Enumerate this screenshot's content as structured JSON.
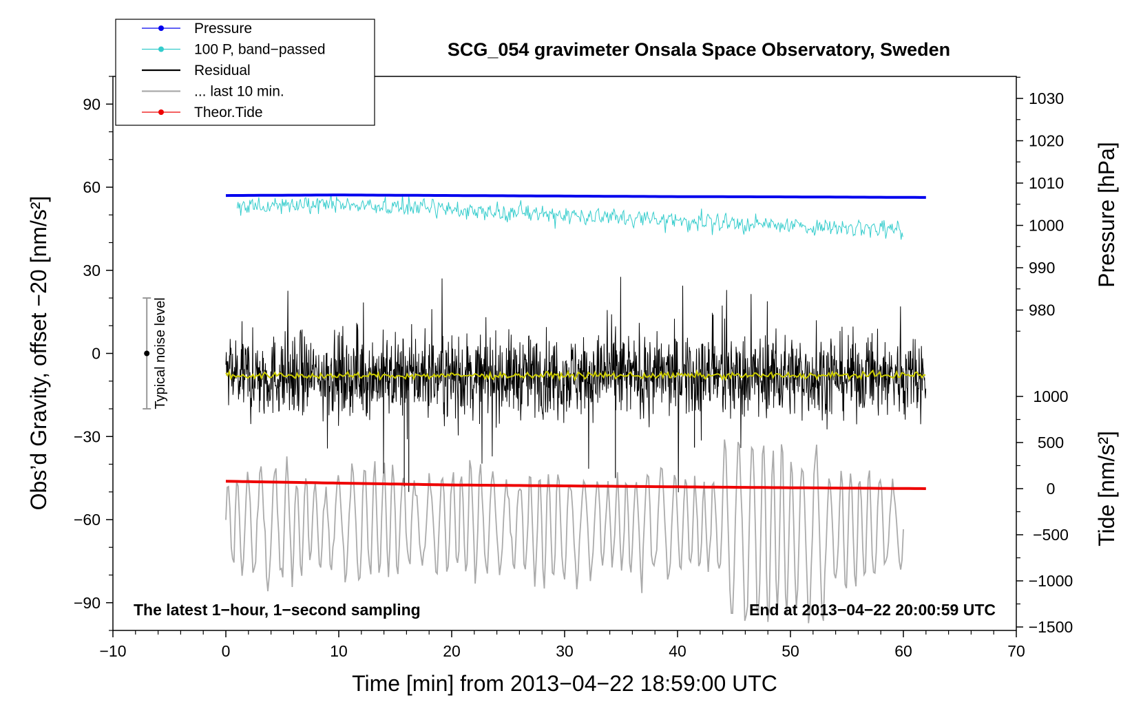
{
  "chart_data": {
    "type": "line",
    "title": "SCG_054 gravimeter Onsala Space Observatory, Sweden",
    "xlabel": "Time [min] from 2013−04−22 18:59:00 UTC",
    "ylabel_left": "Obs’d Gravity, offset −20 [nm/s²]",
    "ylabel_right_top": "Pressure [hPa]",
    "ylabel_right_bottom": "Tide [nm/s²]",
    "xlim": [
      -10,
      70
    ],
    "ylim_left": [
      -100,
      100
    ],
    "x_ticks": [
      -10,
      0,
      10,
      20,
      30,
      40,
      50,
      60,
      70
    ],
    "x_tick_labels": [
      "−10",
      "0",
      "10",
      "20",
      "30",
      "40",
      "50",
      "60",
      "70"
    ],
    "y_left_ticks": [
      90,
      60,
      30,
      0,
      -30,
      -60,
      -90
    ],
    "y_left_tick_labels": [
      "90",
      "60",
      "30",
      "0",
      "−30",
      "−60",
      "−90"
    ],
    "pressure_ticks": [
      1030,
      1020,
      1010,
      1000,
      990,
      980
    ],
    "pressure_tick_labels": [
      "1030",
      "1020",
      "1010",
      "1000",
      "990",
      "980"
    ],
    "tide_ticks": [
      1000,
      500,
      0,
      -500,
      -1000,
      -1500
    ],
    "tide_tick_labels": [
      "1000",
      "500",
      "0",
      "−500",
      "−1000",
      "−1500"
    ],
    "grid": false,
    "legend_position": "top-left",
    "legend": [
      {
        "label": "Pressure",
        "color": "#0000ee",
        "marker": true
      },
      {
        "label": "100 P, band−passed",
        "color": "#33cccc",
        "marker": true
      },
      {
        "label": "Residual",
        "color": "#000000",
        "marker": false
      },
      {
        "label": "... last 10 min.",
        "color": "#aaaaaa",
        "marker": false
      },
      {
        "label": "Theor.Tide",
        "color": "#ee0000",
        "marker": true
      }
    ],
    "noise_level_label": "Typical noise level",
    "noise_level": {
      "x": -7,
      "center": 0,
      "half_range": 20
    },
    "note_left": "The latest 1−hour, 1−second sampling",
    "note_right": "End at 2013−04−22 20:00:59 UTC",
    "series": [
      {
        "name": "Pressure",
        "axis": "left",
        "color": "#0000ee",
        "x": [
          0,
          10,
          20,
          30,
          40,
          50,
          62
        ],
        "y": [
          57.0,
          57.2,
          57.0,
          56.8,
          56.6,
          56.5,
          56.3
        ]
      },
      {
        "name": "100 P, band−passed",
        "axis": "left",
        "color": "#33cccc",
        "x": [
          1,
          10,
          20,
          30,
          40,
          50,
          60
        ],
        "y": [
          53,
          54,
          52,
          50,
          48,
          46,
          45
        ]
      },
      {
        "name": "Residual",
        "axis": "left",
        "color": "#000000",
        "x": [
          0,
          10,
          20,
          30,
          40,
          50,
          62
        ],
        "y": [
          -8,
          -8,
          -8,
          -8,
          -8,
          -8,
          -8
        ]
      },
      {
        "name": "Residual mean",
        "axis": "left",
        "color": "#cccc00",
        "x": [
          0,
          10,
          20,
          30,
          40,
          50,
          62
        ],
        "y": [
          -8.0,
          -8.1,
          -8.0,
          -7.9,
          -8.0,
          -8.0,
          -7.8
        ]
      },
      {
        "name": "... last 10 min.",
        "axis": "tide",
        "color": "#aaaaaa",
        "x": [
          0,
          10,
          20,
          30,
          40,
          50,
          60
        ],
        "y": [
          -400,
          -380,
          -350,
          -420,
          -380,
          -500,
          -400
        ]
      },
      {
        "name": "Theor.Tide",
        "axis": "tide",
        "color": "#ee0000",
        "x": [
          0,
          10,
          20,
          30,
          40,
          50,
          62
        ],
        "y": [
          80,
          60,
          40,
          30,
          20,
          10,
          0
        ]
      }
    ]
  }
}
